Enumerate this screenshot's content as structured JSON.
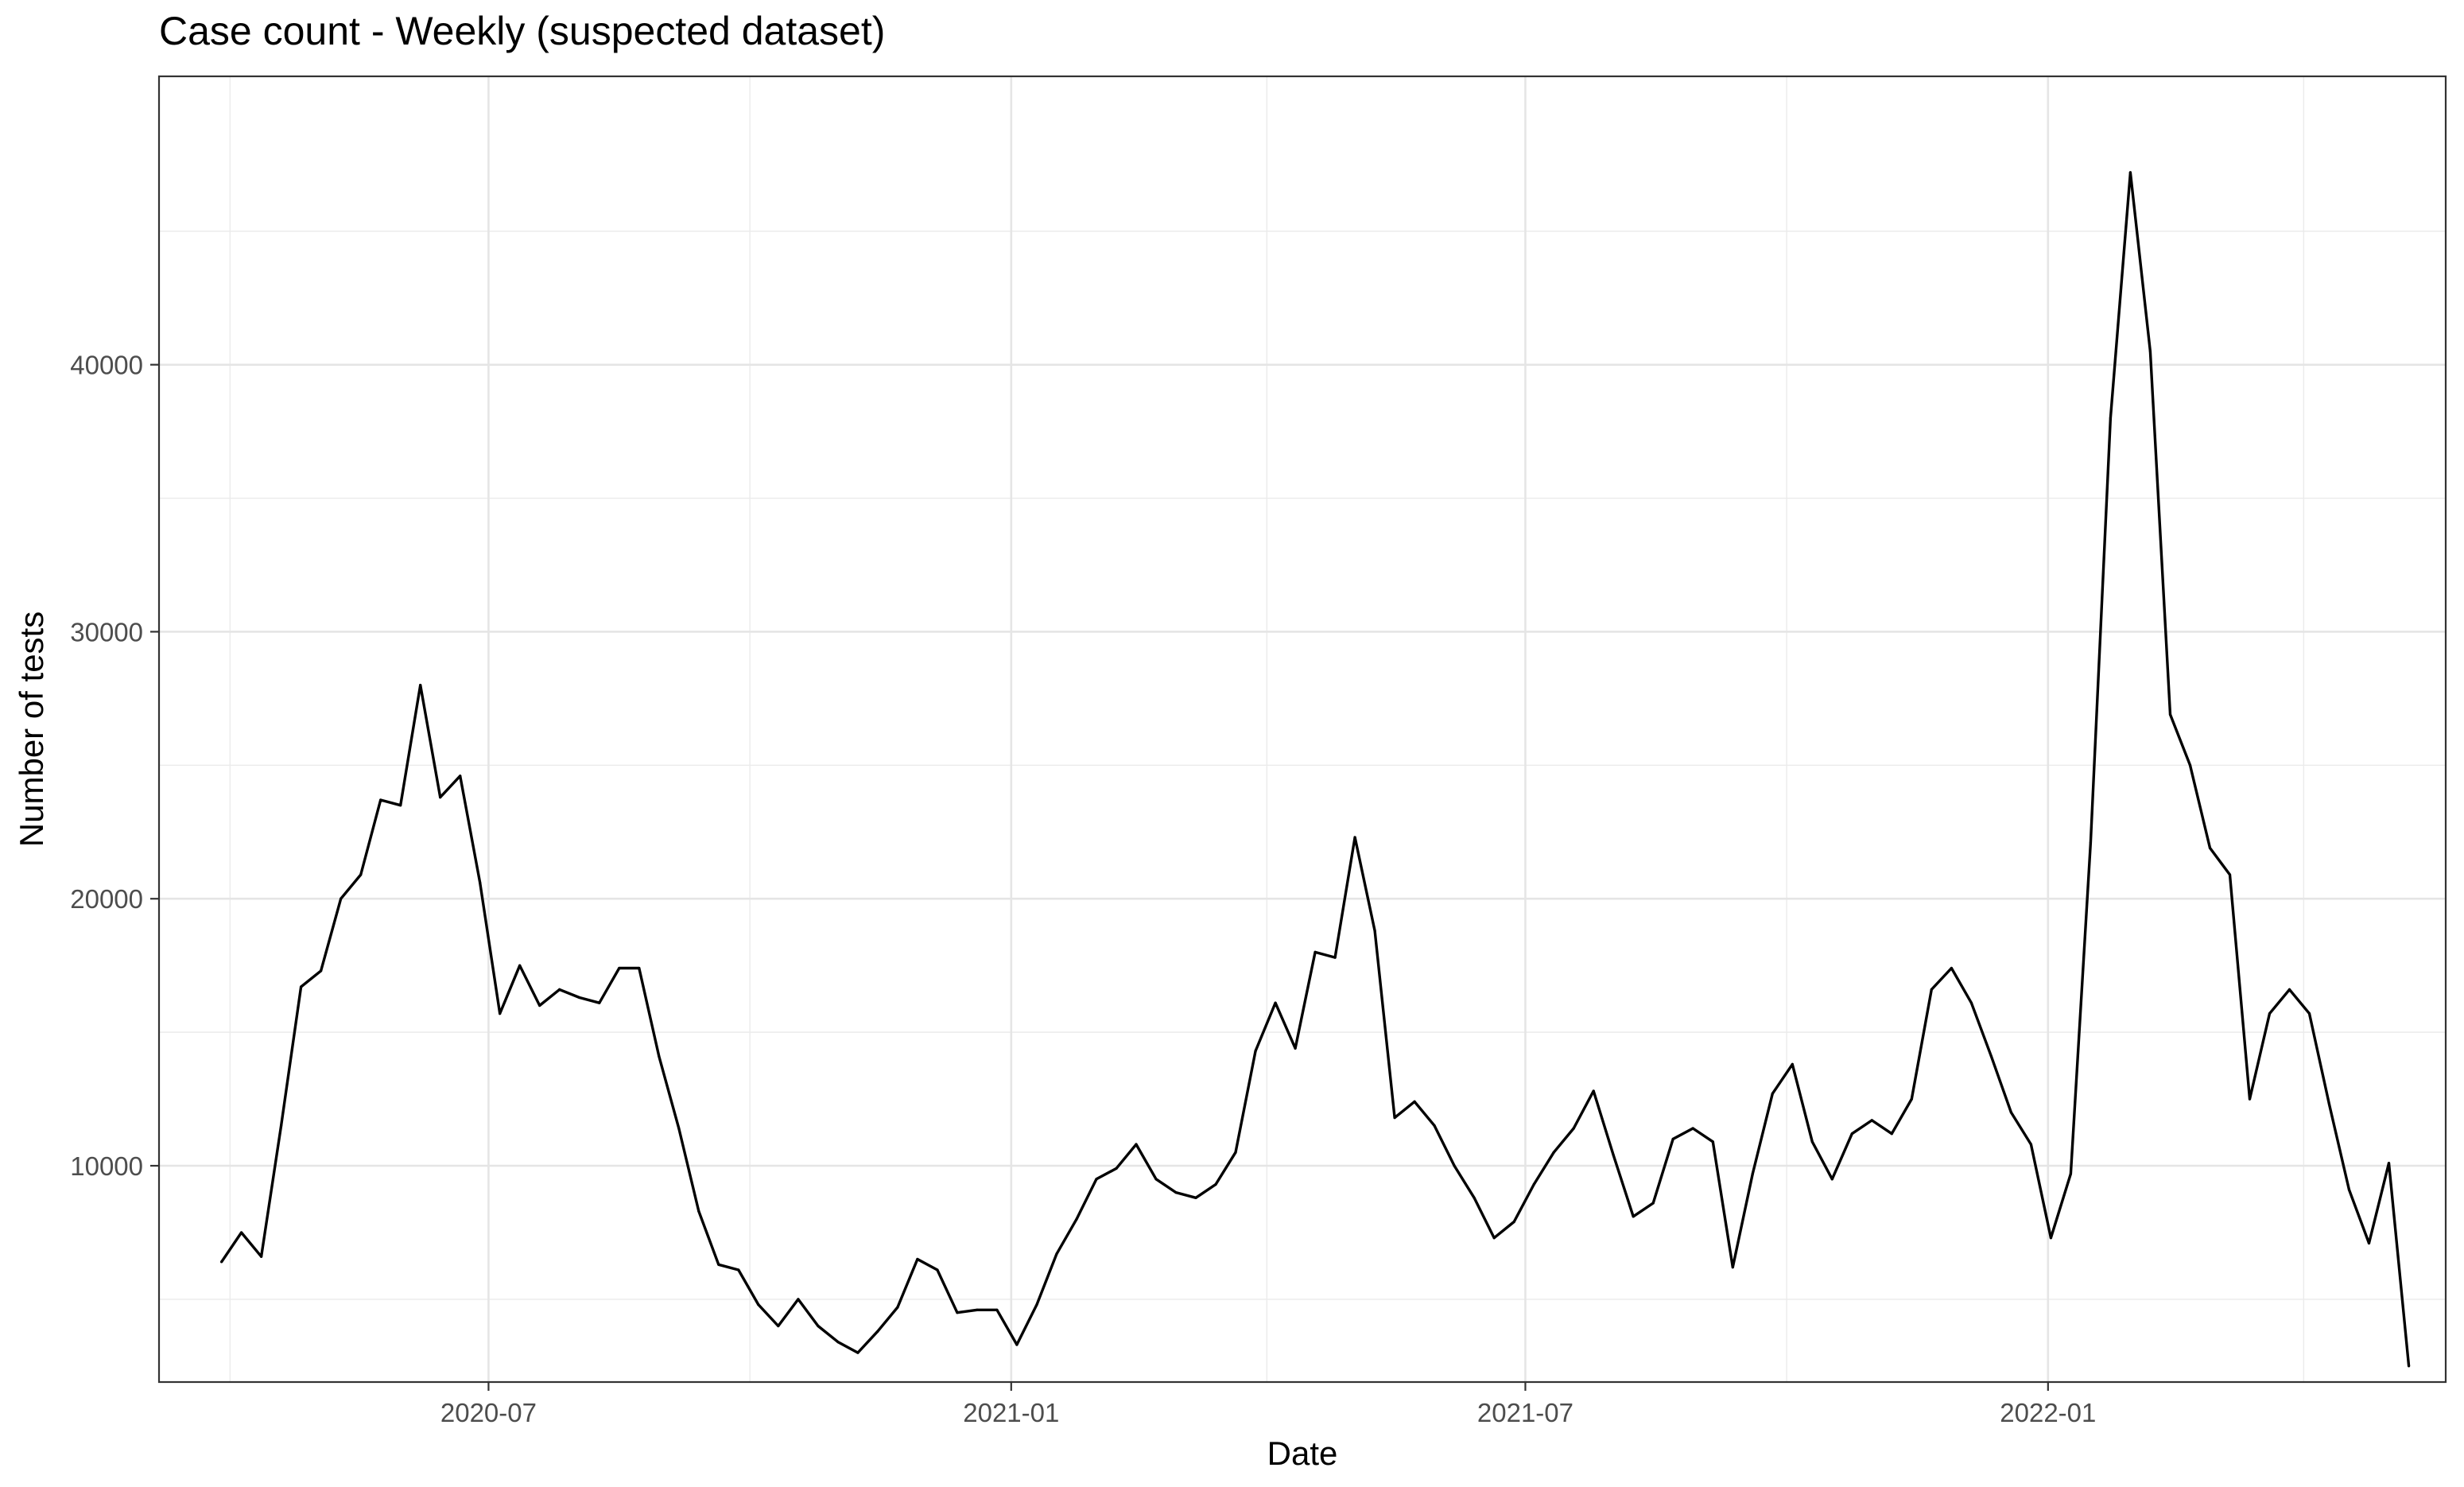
{
  "chart_data": {
    "type": "line",
    "title": "Case count - Weekly (suspected dataset)",
    "xlabel": "Date",
    "ylabel": "Number of tests",
    "x_ticks": [
      "2020-07",
      "2021-01",
      "2021-07",
      "2022-01"
    ],
    "y_ticks": [
      "10000",
      "20000",
      "30000",
      "40000"
    ],
    "xlim": [
      "2020-03-07",
      "2022-05-21"
    ],
    "ylim": [
      1900,
      50800
    ],
    "grid": true,
    "legend": "none",
    "series": [
      {
        "color": "#000000",
        "points": [
          [
            "2020-03-29",
            6400
          ],
          [
            "2020-04-05",
            7500
          ],
          [
            "2020-04-12",
            6600
          ],
          [
            "2020-04-19",
            11500
          ],
          [
            "2020-04-26",
            16700
          ],
          [
            "2020-05-03",
            17300
          ],
          [
            "2020-05-10",
            20000
          ],
          [
            "2020-05-17",
            20900
          ],
          [
            "2020-05-24",
            23700
          ],
          [
            "2020-05-31",
            23500
          ],
          [
            "2020-06-07",
            28000
          ],
          [
            "2020-06-14",
            23800
          ],
          [
            "2020-06-21",
            24600
          ],
          [
            "2020-06-28",
            20600
          ],
          [
            "2020-07-05",
            15700
          ],
          [
            "2020-07-12",
            17500
          ],
          [
            "2020-07-19",
            16000
          ],
          [
            "2020-07-26",
            16600
          ],
          [
            "2020-08-02",
            16300
          ],
          [
            "2020-08-09",
            16100
          ],
          [
            "2020-08-16",
            17400
          ],
          [
            "2020-08-23",
            17400
          ],
          [
            "2020-08-30",
            14100
          ],
          [
            "2020-09-06",
            11400
          ],
          [
            "2020-09-13",
            8300
          ],
          [
            "2020-09-20",
            6300
          ],
          [
            "2020-09-27",
            6100
          ],
          [
            "2020-10-04",
            4800
          ],
          [
            "2020-10-11",
            4000
          ],
          [
            "2020-10-18",
            5000
          ],
          [
            "2020-10-25",
            4000
          ],
          [
            "2020-11-01",
            3400
          ],
          [
            "2020-11-08",
            3000
          ],
          [
            "2020-11-15",
            3800
          ],
          [
            "2020-11-22",
            4700
          ],
          [
            "2020-11-29",
            6500
          ],
          [
            "2020-12-06",
            6100
          ],
          [
            "2020-12-13",
            4500
          ],
          [
            "2020-12-20",
            4600
          ],
          [
            "2020-12-27",
            4600
          ],
          [
            "2021-01-03",
            3300
          ],
          [
            "2021-01-10",
            4800
          ],
          [
            "2021-01-17",
            6700
          ],
          [
            "2021-01-24",
            8000
          ],
          [
            "2021-01-31",
            9500
          ],
          [
            "2021-02-07",
            9900
          ],
          [
            "2021-02-14",
            10800
          ],
          [
            "2021-02-21",
            9500
          ],
          [
            "2021-02-28",
            9000
          ],
          [
            "2021-03-07",
            8800
          ],
          [
            "2021-03-14",
            9300
          ],
          [
            "2021-03-21",
            10500
          ],
          [
            "2021-03-28",
            14300
          ],
          [
            "2021-04-04",
            16100
          ],
          [
            "2021-04-11",
            14400
          ],
          [
            "2021-04-18",
            18000
          ],
          [
            "2021-04-25",
            17800
          ],
          [
            "2021-05-02",
            22300
          ],
          [
            "2021-05-09",
            18800
          ],
          [
            "2021-05-16",
            11800
          ],
          [
            "2021-05-23",
            12400
          ],
          [
            "2021-05-30",
            11500
          ],
          [
            "2021-06-06",
            10000
          ],
          [
            "2021-06-13",
            8800
          ],
          [
            "2021-06-20",
            7300
          ],
          [
            "2021-06-27",
            7900
          ],
          [
            "2021-07-04",
            9300
          ],
          [
            "2021-07-11",
            10500
          ],
          [
            "2021-07-18",
            11400
          ],
          [
            "2021-07-25",
            12800
          ],
          [
            "2021-08-01",
            10400
          ],
          [
            "2021-08-08",
            8100
          ],
          [
            "2021-08-15",
            8600
          ],
          [
            "2021-08-22",
            11000
          ],
          [
            "2021-08-29",
            11400
          ],
          [
            "2021-09-05",
            10900
          ],
          [
            "2021-09-12",
            6200
          ],
          [
            "2021-09-19",
            9700
          ],
          [
            "2021-09-26",
            12700
          ],
          [
            "2021-10-03",
            13800
          ],
          [
            "2021-10-10",
            10900
          ],
          [
            "2021-10-17",
            9500
          ],
          [
            "2021-10-24",
            11200
          ],
          [
            "2021-10-31",
            11700
          ],
          [
            "2021-11-07",
            11200
          ],
          [
            "2021-11-14",
            12500
          ],
          [
            "2021-11-21",
            16600
          ],
          [
            "2021-11-28",
            17400
          ],
          [
            "2021-12-05",
            16100
          ],
          [
            "2021-12-12",
            14100
          ],
          [
            "2021-12-19",
            12000
          ],
          [
            "2021-12-26",
            10800
          ],
          [
            "2022-01-02",
            7300
          ],
          [
            "2022-01-09",
            9700
          ],
          [
            "2022-01-16",
            22100
          ],
          [
            "2022-01-23",
            38000
          ],
          [
            "2022-01-30",
            47200
          ],
          [
            "2022-02-06",
            40500
          ],
          [
            "2022-02-13",
            26900
          ],
          [
            "2022-02-20",
            25000
          ],
          [
            "2022-02-27",
            21900
          ],
          [
            "2022-03-06",
            20900
          ],
          [
            "2022-03-13",
            12500
          ],
          [
            "2022-03-20",
            15700
          ],
          [
            "2022-03-27",
            16600
          ],
          [
            "2022-04-03",
            15700
          ],
          [
            "2022-04-10",
            12300
          ],
          [
            "2022-04-17",
            9100
          ],
          [
            "2022-04-24",
            7100
          ],
          [
            "2022-05-01",
            10100
          ],
          [
            "2022-05-08",
            2500
          ]
        ]
      }
    ]
  }
}
